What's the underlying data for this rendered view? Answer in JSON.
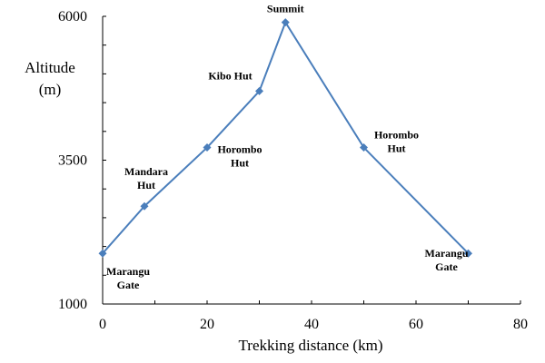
{
  "chart_data": {
    "type": "line",
    "xlabel": "Trekking distance  (km)",
    "ylabel_lines": [
      "Altitude",
      "(m)"
    ],
    "xlim": [
      0,
      80
    ],
    "ylim": [
      1000,
      6000
    ],
    "x_ticks": [
      0,
      20,
      40,
      60,
      80
    ],
    "y_ticks": [
      1000,
      3500,
      6000
    ],
    "grid": false,
    "series": [
      {
        "color": "#4a7ebb",
        "points": [
          {
            "x": 0,
            "y": 1880,
            "label": [
              "Marangu",
              "Gate"
            ]
          },
          {
            "x": 8,
            "y": 2700,
            "label": [
              "Mandara",
              "Hut"
            ]
          },
          {
            "x": 20,
            "y": 3720,
            "label": [
              "Horombo",
              "Hut"
            ]
          },
          {
            "x": 30,
            "y": 4700,
            "label": [
              "Kibo Hut"
            ]
          },
          {
            "x": 35,
            "y": 5895,
            "label": [
              "Summit"
            ]
          },
          {
            "x": 50,
            "y": 3720,
            "label": [
              "Horombo",
              "Hut"
            ]
          },
          {
            "x": 70,
            "y": 1880,
            "label": [
              "Marangu",
              "Gate"
            ]
          }
        ]
      }
    ]
  }
}
